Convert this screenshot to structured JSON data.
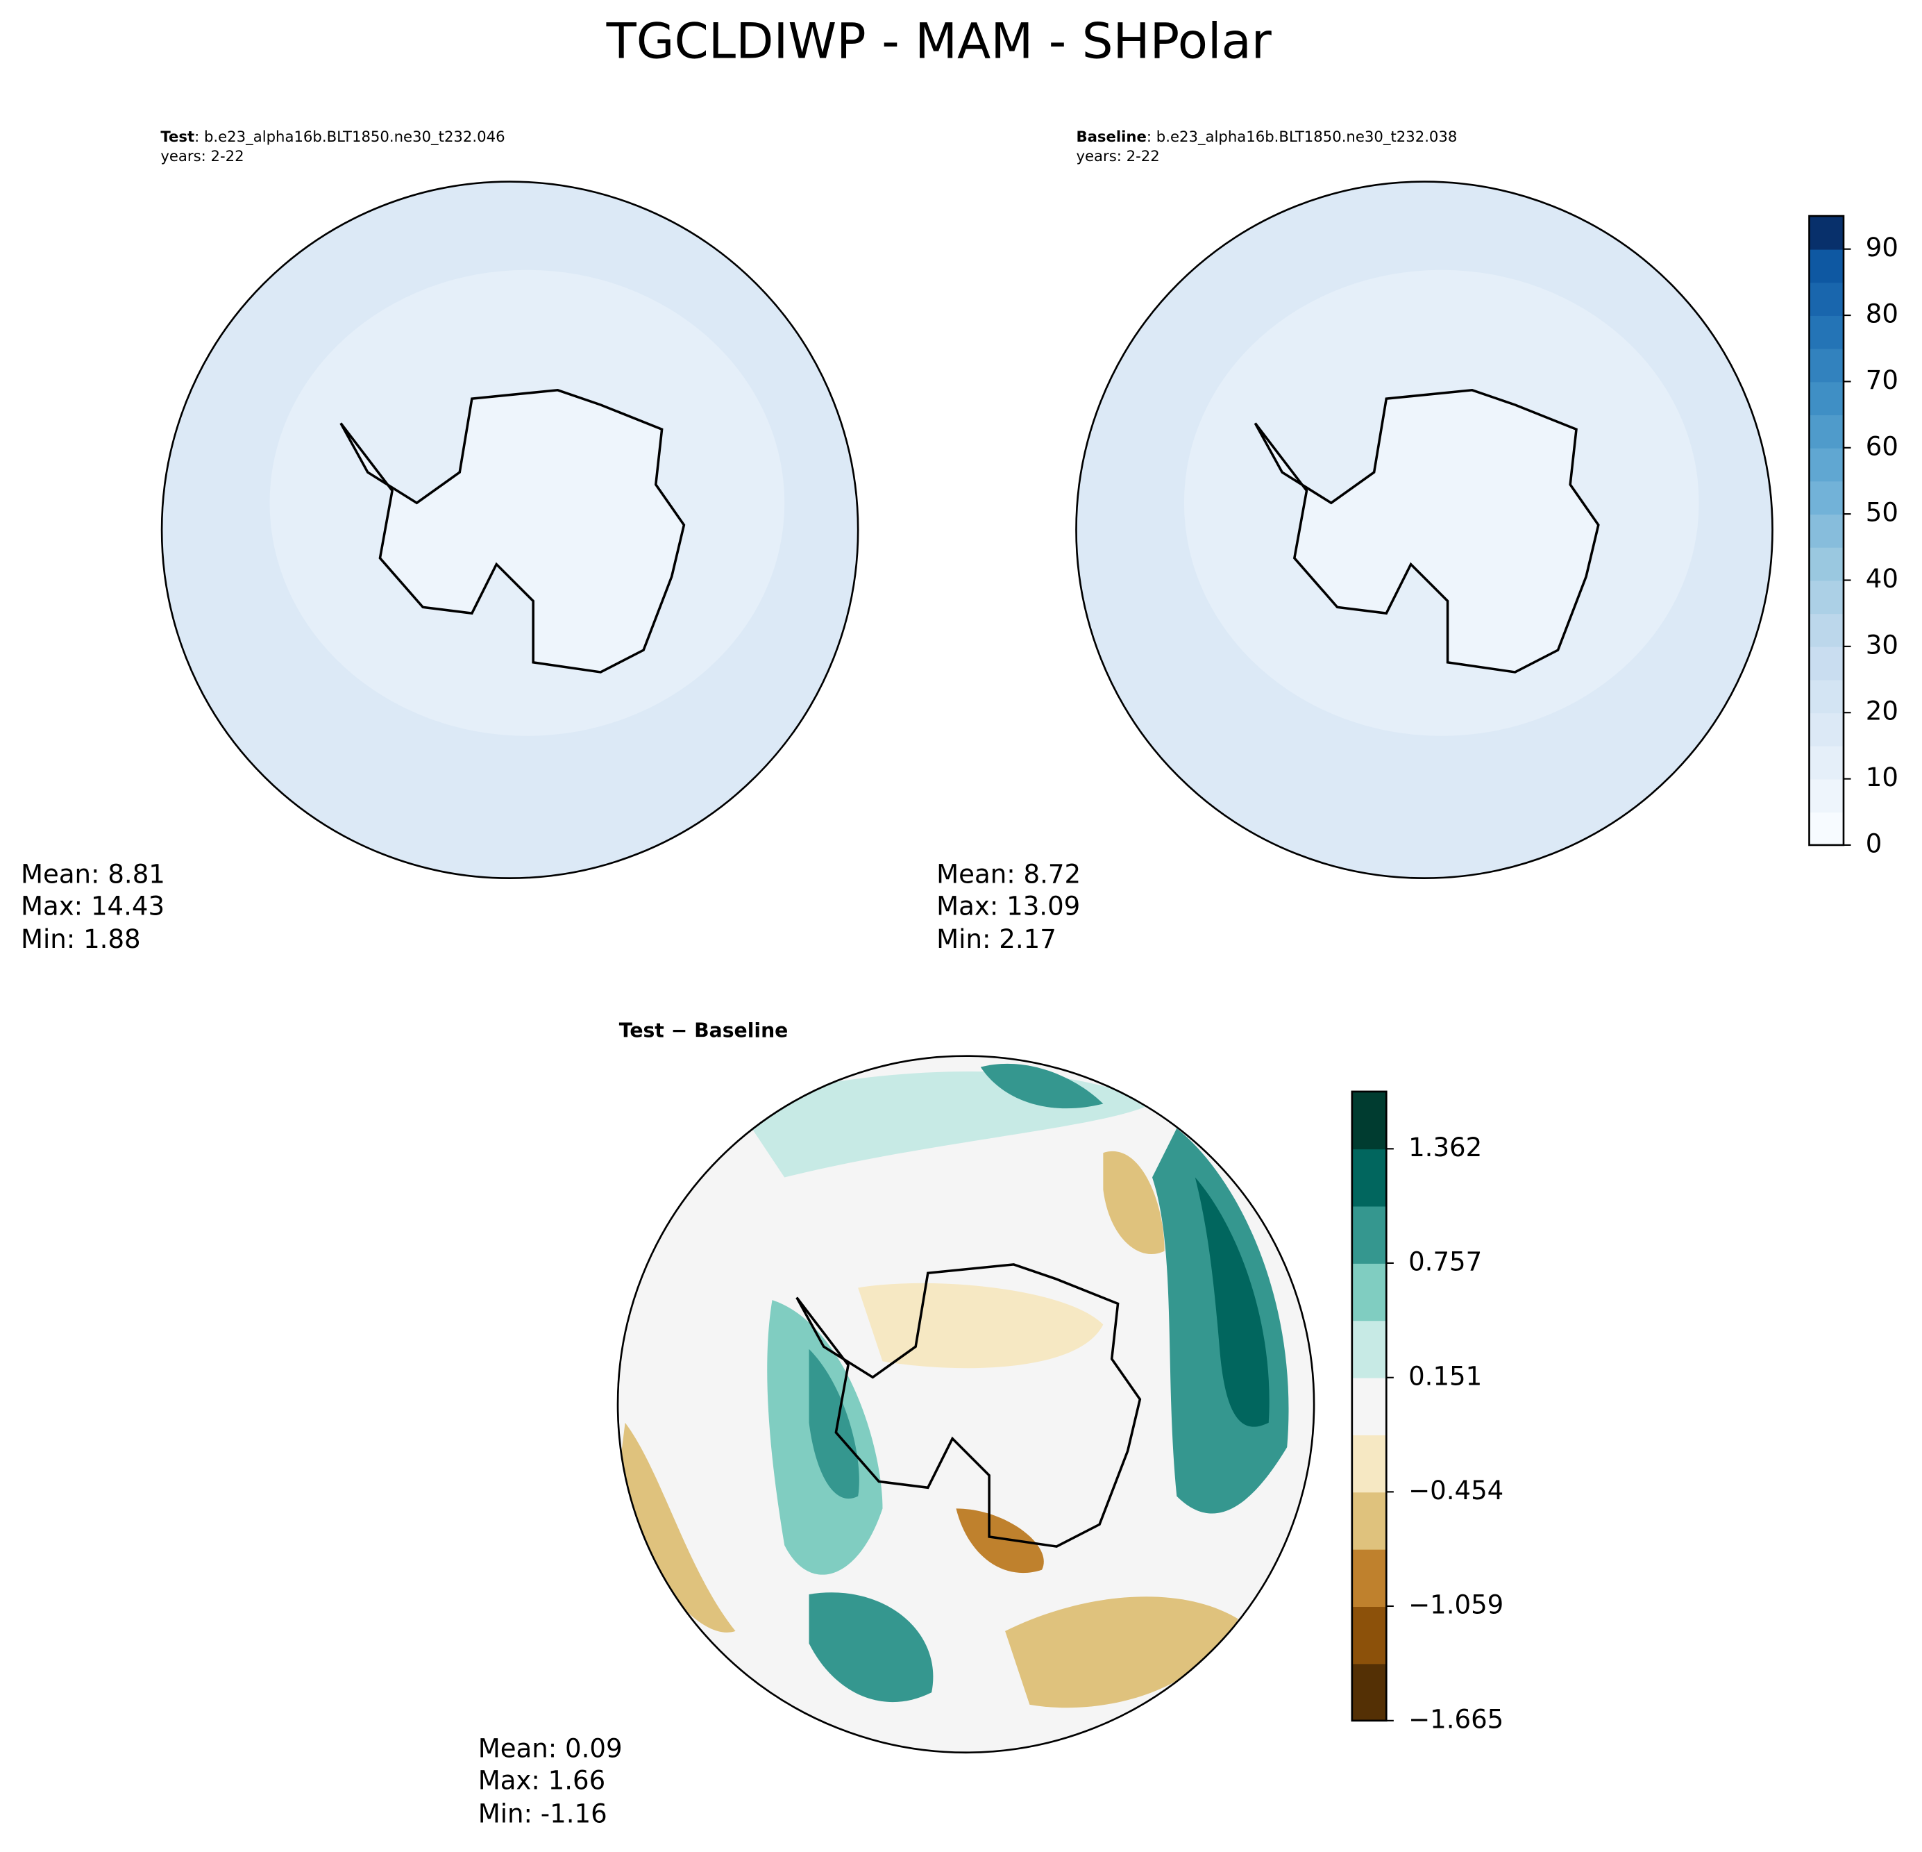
{
  "title": "TGCLDIWP - MAM - SHPolar",
  "panels": [
    {
      "name": "Test",
      "case": ": b.e23_alpha16b.BLT1850.ne30_t232.046",
      "years": "years: 2-22",
      "stats": [
        "Mean:  8.81",
        "Max: 14.43",
        "Min:  1.88"
      ]
    },
    {
      "name": "Baseline",
      "case": ": b.e23_alpha16b.BLT1850.ne30_t232.038",
      "years": "years: 2-22",
      "stats": [
        "Mean:  8.72",
        "Max: 13.09",
        "Min:  2.17"
      ]
    },
    {
      "name": "Test − Baseline",
      "stats": [
        "Mean:  0.09",
        "Max:  1.66",
        "Min: -1.16"
      ]
    }
  ],
  "colorbars": [
    {
      "lim": [
        0,
        95
      ],
      "ticks": [
        0,
        10,
        20,
        30,
        40,
        50,
        60,
        70,
        80,
        90
      ],
      "colors": [
        "#f7fbff",
        "#eef5fc",
        "#e5eff9",
        "#dce9f6",
        "#d3e4f3",
        "#c9ddf0",
        "#bcd7eb",
        "#acd0e6",
        "#9ac8e0",
        "#87bddc",
        "#72b2d8",
        "#60a7d2",
        "#4f9bcb",
        "#3f8fc5",
        "#3282be",
        "#2474b6",
        "#1966ad",
        "#0e58a2",
        "#08306b"
      ]
    },
    {
      "lim": [
        -1.665,
        1.665
      ],
      "ticks": [
        {
          "value": -1.665,
          "label": "−1.665"
        },
        {
          "value": -1.059,
          "label": "−1.059"
        },
        {
          "value": -0.454,
          "label": "−0.454"
        },
        0.151,
        0.757,
        1.362
      ],
      "colors": [
        "#543005",
        "#8c510a",
        "#bf812d",
        "#dfc27d",
        "#f6e8c3",
        "#f5f5f5",
        "#c7eae5",
        "#80cdc1",
        "#35978f",
        "#01665e",
        "#003c30"
      ]
    }
  ]
}
